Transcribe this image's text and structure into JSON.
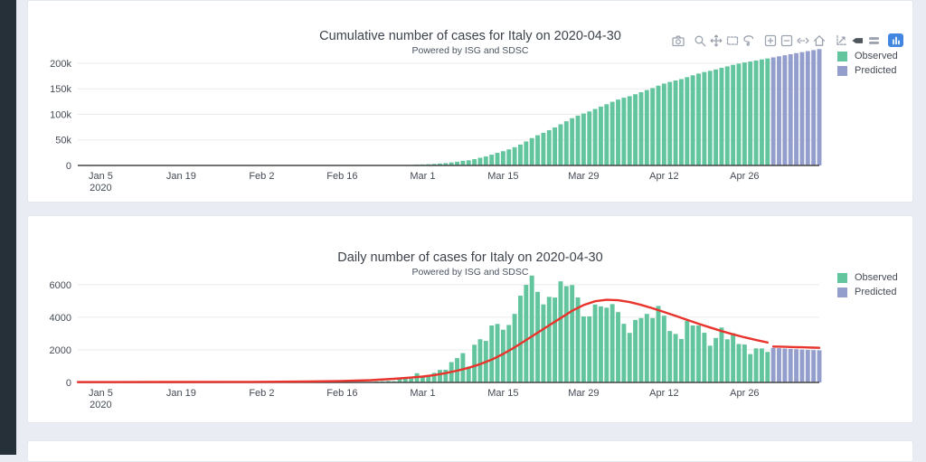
{
  "page": {
    "background": "#e9ecf2",
    "sidebar_color": "#263038",
    "card_color": "#ffffff"
  },
  "modebar": {
    "icon_color": "#9ca3af",
    "active_icon_color": "#50565e",
    "logo_color": "#4186e0",
    "active_icon": "hover-closest",
    "groups": [
      [
        "camera"
      ],
      [
        "zoom",
        "pan",
        "box-select",
        "lasso"
      ],
      [
        "zoom-in",
        "zoom-out",
        "autoscale",
        "reset-axes"
      ],
      [
        "toggle-spikelines",
        "hover-closest",
        "hover-compare"
      ],
      [
        "plotly-logo"
      ]
    ]
  },
  "chart_data": [
    {
      "type": "bar",
      "title": "Cumulative number of cases for Italy on 2020-04-30",
      "subtitle": "Powered by ISG and SDSC",
      "xlabel": "",
      "ylabel": "",
      "grid": true,
      "legend_position": "right",
      "x_axis": {
        "start_date": "2020-01-01",
        "end_date": "2020-05-09",
        "range_days": 129,
        "ticks": [
          {
            "label": "Jan 5",
            "year": "2020",
            "day": 4
          },
          {
            "label": "Jan 19",
            "day": 18
          },
          {
            "label": "Feb 2",
            "day": 32
          },
          {
            "label": "Feb 16",
            "day": 46
          },
          {
            "label": "Mar 1",
            "day": 60
          },
          {
            "label": "Mar 15",
            "day": 74
          },
          {
            "label": "Mar 29",
            "day": 88
          },
          {
            "label": "Apr 12",
            "day": 102
          },
          {
            "label": "Apr 26",
            "day": 116
          }
        ]
      },
      "ylim": [
        0,
        230000
      ],
      "yticks": [
        {
          "label": "0",
          "value": 0
        },
        {
          "label": "50k",
          "value": 50000
        },
        {
          "label": "100k",
          "value": 100000
        },
        {
          "label": "150k",
          "value": 150000
        },
        {
          "label": "200k",
          "value": 200000
        }
      ],
      "series": [
        {
          "name": "Observed",
          "color": "#62c59e",
          "start_day": 51,
          "start_date": "2020-02-21",
          "end_date": "2020-04-30",
          "values": [
            20,
            82,
            156,
            249,
            327,
            577,
            815,
            1055,
            1621,
            1963,
            2429,
            3016,
            3785,
            4563,
            5810,
            7302,
            9099,
            10076,
            12389,
            15040,
            17587,
            21084,
            24674,
            27907,
            31433,
            35640,
            40962,
            46948,
            53505,
            59065,
            63854,
            69103,
            74313,
            80516,
            86425,
            92399,
            97616,
            101666,
            105719,
            110501,
            115169,
            119754,
            124559,
            128875,
            132474,
            135513,
            139349,
            143300,
            147504,
            151455,
            156149,
            160241,
            163394,
            166366,
            169033,
            172819,
            176312,
            179803,
            182850,
            185106,
            187835,
            191205,
            193851,
            196872,
            199229,
            201553,
            203292,
            205383,
            207469,
            209341
          ]
        },
        {
          "name": "Predicted",
          "color": "#939ecd",
          "start_day": 121,
          "start_date": "2020-05-01",
          "end_date": "2020-05-09",
          "values": [
            211461,
            213561,
            215641,
            217701,
            219741,
            221761,
            223761,
            225746,
            227716
          ]
        }
      ]
    },
    {
      "type": "bar",
      "title": "Daily number of cases for Italy on 2020-04-30",
      "subtitle": "Powered by ISG and SDSC",
      "xlabel": "",
      "ylabel": "",
      "grid": true,
      "legend_position": "right",
      "x_axis": {
        "start_date": "2020-01-01",
        "end_date": "2020-05-09",
        "range_days": 129,
        "ticks": [
          {
            "label": "Jan 5",
            "year": "2020",
            "day": 4
          },
          {
            "label": "Jan 19",
            "day": 18
          },
          {
            "label": "Feb 2",
            "day": 32
          },
          {
            "label": "Feb 16",
            "day": 46
          },
          {
            "label": "Mar 1",
            "day": 60
          },
          {
            "label": "Mar 15",
            "day": 74
          },
          {
            "label": "Mar 29",
            "day": 88
          },
          {
            "label": "Apr 12",
            "day": 102
          },
          {
            "label": "Apr 26",
            "day": 116
          }
        ]
      },
      "ylim": [
        0,
        7100
      ],
      "yticks": [
        {
          "label": "0",
          "value": 0
        },
        {
          "label": "2000",
          "value": 2000
        },
        {
          "label": "4000",
          "value": 4000
        },
        {
          "label": "6000",
          "value": 6000
        }
      ],
      "series": [
        {
          "name": "Observed",
          "color": "#62c59e",
          "start_day": 51,
          "start_date": "2020-02-21",
          "end_date": "2020-04-30",
          "values": [
            20,
            62,
            74,
            93,
            78,
            250,
            238,
            240,
            566,
            342,
            466,
            587,
            769,
            778,
            1247,
            1492,
            1797,
            977,
            2313,
            2651,
            2547,
            3497,
            3590,
            3233,
            3526,
            4207,
            5322,
            5986,
            6557,
            5560,
            4789,
            5249,
            5210,
            6203,
            5909,
            5974,
            5217,
            4050,
            4053,
            4782,
            4668,
            4585,
            4805,
            4316,
            3599,
            3039,
            3836,
            3951,
            4204,
            3951,
            4694,
            4092,
            3153,
            2972,
            2667,
            3786,
            3493,
            3491,
            3047,
            2256,
            2729,
            3370,
            2646,
            3021,
            2357,
            2324,
            1739,
            2091,
            2086,
            1872
          ]
        },
        {
          "name": "Predicted",
          "color": "#939ecd",
          "start_day": 121,
          "start_date": "2020-05-01",
          "end_date": "2020-05-09",
          "values": [
            2120,
            2100,
            2080,
            2060,
            2040,
            2020,
            2000,
            1985,
            1970
          ]
        }
      ],
      "fit_line": {
        "name": "Fitted curve",
        "color": "#e8342c",
        "segments": [
          {
            "days": [
              0,
              15,
              30,
              40,
              46,
              51,
              55,
              58,
              60,
              62,
              64,
              66,
              68,
              70,
              72,
              74,
              76,
              78,
              80,
              82,
              84,
              86,
              88,
              90,
              92,
              94,
              96,
              98,
              100,
              102,
              104,
              106,
              108,
              110,
              112,
              114,
              116,
              118,
              120
            ],
            "values": [
              20,
              25,
              35,
              55,
              90,
              140,
              220,
              300,
              360,
              450,
              570,
              720,
              900,
              1120,
              1400,
              1750,
              2150,
              2600,
              3050,
              3500,
              3950,
              4400,
              4750,
              4980,
              5070,
              5040,
              4930,
              4760,
              4550,
              4320,
              4080,
              3840,
              3600,
              3370,
              3150,
              2950,
              2770,
              2600,
              2450
            ]
          },
          {
            "days": [
              121,
              122,
              123,
              124,
              125,
              126,
              127,
              128,
              129
            ],
            "values": [
              2200,
              2195,
              2185,
              2175,
              2165,
              2155,
              2145,
              2135,
              2125
            ]
          }
        ]
      }
    }
  ]
}
